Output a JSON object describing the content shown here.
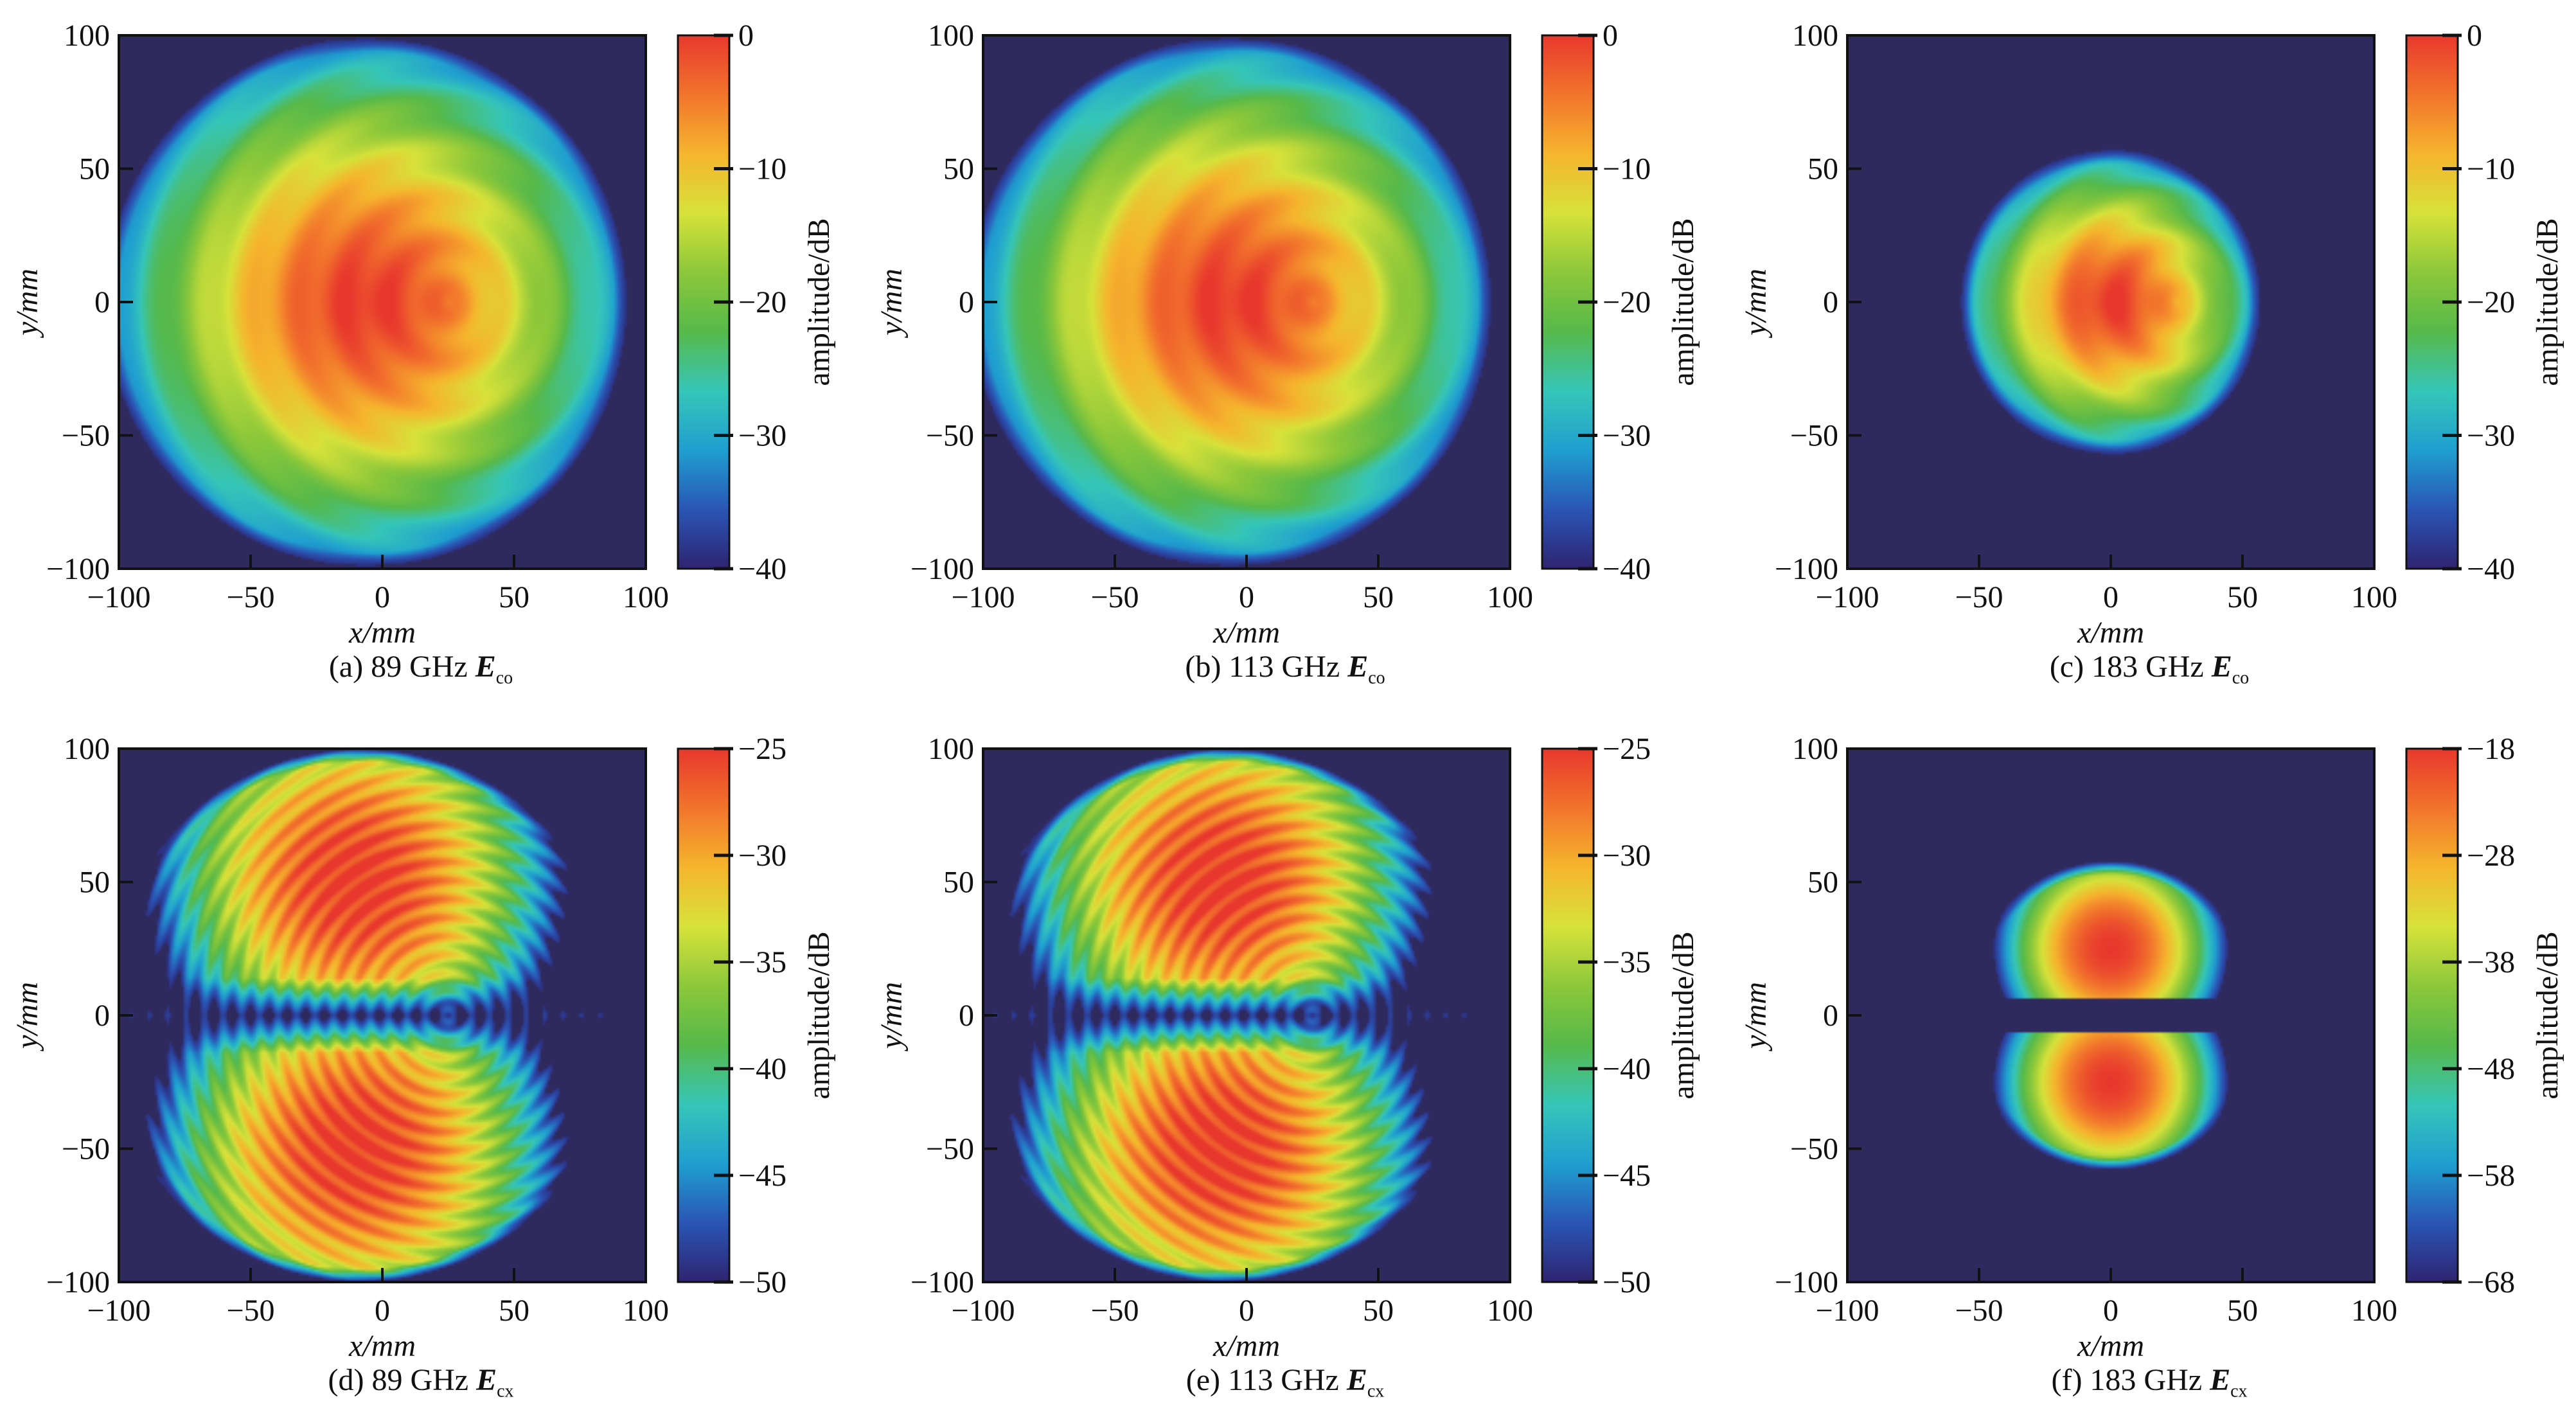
{
  "colormap": [
    "#2e2470",
    "#2a55b5",
    "#1f9fd0",
    "#36c6b8",
    "#56b94a",
    "#8cc83a",
    "#d7e23a",
    "#f5b52d",
    "#f2742c",
    "#e8382d"
  ],
  "background_color": "#2f2a5e",
  "chart_data": [
    {
      "type": "heatmap",
      "caption": {
        "label": "(a) 89 GHz",
        "field": "E",
        "sub": "co"
      },
      "xlabel": "x/mm",
      "ylabel": "y/mm",
      "colorbar_label": "amplitude/dB",
      "xlim": [
        -100,
        100
      ],
      "ylim": [
        -100,
        100
      ],
      "xticks": [
        "−100",
        "−50",
        "0",
        "50",
        "100"
      ],
      "yticks": [
        "−100",
        "−50",
        "0",
        "50",
        "100"
      ],
      "colorbar_range": [
        -40,
        0
      ],
      "colorbar_ticks": [
        "0",
        "−10",
        "−20",
        "−30",
        "−40"
      ],
      "pattern": "co",
      "radius": 100,
      "center": [
        0,
        0
      ]
    },
    {
      "type": "heatmap",
      "caption": {
        "label": "(b) 113 GHz",
        "field": "E",
        "sub": "co"
      },
      "xlabel": "x/mm",
      "ylabel": "y/mm",
      "colorbar_label": "amplitude/dB",
      "xlim": [
        -100,
        100
      ],
      "ylim": [
        -100,
        100
      ],
      "xticks": [
        "−100",
        "−50",
        "0",
        "50",
        "100"
      ],
      "yticks": [
        "−100",
        "−50",
        "0",
        "50",
        "100"
      ],
      "colorbar_range": [
        -40,
        0
      ],
      "colorbar_ticks": [
        "0",
        "−10",
        "−20",
        "−30",
        "−40"
      ],
      "pattern": "co",
      "radius": 100,
      "center": [
        0,
        0
      ]
    },
    {
      "type": "heatmap",
      "caption": {
        "label": "(c) 183 GHz",
        "field": "E",
        "sub": "co"
      },
      "xlabel": "x/mm",
      "ylabel": "y/mm",
      "colorbar_label": "amplitude/dB",
      "xlim": [
        -100,
        100
      ],
      "ylim": [
        -100,
        100
      ],
      "xticks": [
        "−100",
        "−50",
        "0",
        "50",
        "100"
      ],
      "yticks": [
        "−100",
        "−50",
        "0",
        "50",
        "100"
      ],
      "colorbar_range": [
        -40,
        0
      ],
      "colorbar_ticks": [
        "0",
        "−10",
        "−20",
        "−30",
        "−40"
      ],
      "pattern": "co",
      "radius": 58,
      "center": [
        0,
        0
      ]
    },
    {
      "type": "heatmap",
      "caption": {
        "label": "(d) 89 GHz",
        "field": "E",
        "sub": "cx"
      },
      "xlabel": "x/mm",
      "ylabel": "y/mm",
      "colorbar_label": "amplitude/dB",
      "xlim": [
        -100,
        100
      ],
      "ylim": [
        -100,
        100
      ],
      "xticks": [
        "−100",
        "−50",
        "0",
        "50",
        "100"
      ],
      "yticks": [
        "−100",
        "−50",
        "0",
        "50",
        "100"
      ],
      "colorbar_range": [
        -50,
        -25
      ],
      "colorbar_ticks": [
        "−25",
        "−30",
        "−35",
        "−40",
        "−45",
        "−50"
      ],
      "pattern": "cx-wide",
      "radius": 100,
      "center": [
        25,
        0
      ]
    },
    {
      "type": "heatmap",
      "caption": {
        "label": "(e) 113 GHz",
        "field": "E",
        "sub": "cx"
      },
      "xlabel": "x/mm",
      "ylabel": "y/mm",
      "colorbar_label": "amplitude/dB",
      "xlim": [
        -100,
        100
      ],
      "ylim": [
        -100,
        100
      ],
      "xticks": [
        "−100",
        "−50",
        "0",
        "50",
        "100"
      ],
      "yticks": [
        "−100",
        "−50",
        "0",
        "50",
        "100"
      ],
      "colorbar_range": [
        -50,
        -25
      ],
      "colorbar_ticks": [
        "−25",
        "−30",
        "−35",
        "−40",
        "−45",
        "−50"
      ],
      "pattern": "cx-wide",
      "radius": 100,
      "center": [
        25,
        0
      ]
    },
    {
      "type": "heatmap",
      "caption": {
        "label": "(f) 183 GHz",
        "field": "E",
        "sub": "cx"
      },
      "xlabel": "x/mm",
      "ylabel": "y/mm",
      "colorbar_label": "amplitude/dB",
      "xlim": [
        -100,
        100
      ],
      "ylim": [
        -100,
        100
      ],
      "xticks": [
        "−100",
        "−50",
        "0",
        "50",
        "100"
      ],
      "yticks": [
        "−100",
        "−50",
        "0",
        "50",
        "100"
      ],
      "colorbar_range": [
        -68,
        -18
      ],
      "colorbar_ticks": [
        "−18",
        "−28",
        "−38",
        "−48",
        "−58",
        "−68"
      ],
      "pattern": "cx-narrow",
      "radius": 58,
      "center": [
        0,
        0
      ]
    }
  ]
}
